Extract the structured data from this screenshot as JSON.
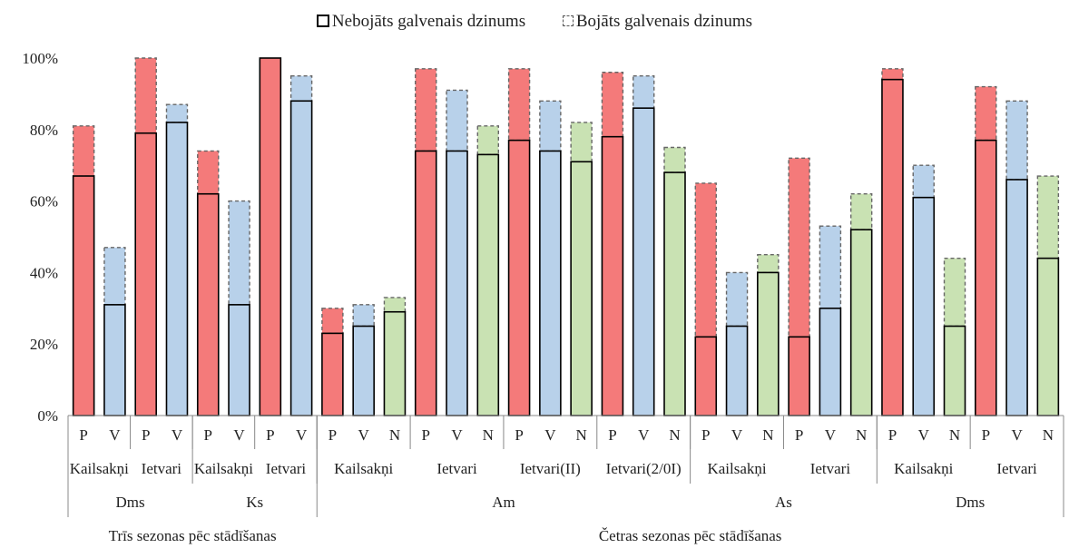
{
  "chart_data": {
    "type": "bar",
    "stacked": true,
    "legend": {
      "position": "top",
      "items": [
        {
          "label": "Nebojāts galvenais dzinums",
          "style": "solid-border"
        },
        {
          "label": "Bojāts galvenais dzinums",
          "style": "dashed-border"
        }
      ]
    },
    "y_axis": {
      "min": 0,
      "max": 100,
      "ticks": [
        "0%",
        "20%",
        "40%",
        "60%",
        "80%",
        "100%"
      ],
      "grid": false
    },
    "colors": {
      "P": "#f47a7a",
      "V": "#b8d1ea",
      "N": "#c9e2b3",
      "axis": "#888888",
      "outline": "#000000",
      "dashed_outline": "#666666"
    },
    "categories_level1": [
      "P",
      "V",
      "P",
      "V",
      "P",
      "V",
      "P",
      "V",
      "P",
      "V",
      "N",
      "P",
      "V",
      "N",
      "P",
      "V",
      "N",
      "P",
      "V",
      "N",
      "P",
      "V",
      "N",
      "P",
      "V",
      "N",
      "P",
      "V",
      "N",
      "P",
      "V",
      "N"
    ],
    "series": [
      {
        "name": "Nebojāts galvenais dzinums",
        "values": [
          67,
          31,
          79,
          82,
          62,
          31,
          100,
          88,
          23,
          25,
          29,
          74,
          74,
          73,
          77,
          74,
          71,
          78,
          86,
          68,
          22,
          25,
          40,
          22,
          30,
          52,
          94,
          61,
          25,
          77,
          66,
          44
        ]
      },
      {
        "name": "Bojāts galvenais dzinums",
        "values": [
          14,
          16,
          21,
          5,
          12,
          29,
          0,
          7,
          7,
          6,
          4,
          23,
          17,
          8,
          20,
          14,
          11,
          18,
          9,
          7,
          43,
          15,
          5,
          50,
          23,
          10,
          3,
          9,
          19,
          15,
          22,
          23
        ]
      }
    ],
    "groups_level2": [
      {
        "label": "Kailsakņi",
        "bars": 2
      },
      {
        "label": "Ietvari",
        "bars": 2
      },
      {
        "label": "Kailsakņi",
        "bars": 2
      },
      {
        "label": "Ietvari",
        "bars": 2
      },
      {
        "label": "Kailsakņi",
        "bars": 3
      },
      {
        "label": "Ietvari",
        "bars": 3
      },
      {
        "label": "Ietvari(II)",
        "bars": 3
      },
      {
        "label": "Ietvari(2/0I)",
        "bars": 3
      },
      {
        "label": "Kailsakņi",
        "bars": 3
      },
      {
        "label": "Ietvari",
        "bars": 3
      },
      {
        "label": "Kailsakņi",
        "bars": 3
      },
      {
        "label": "Ietvari",
        "bars": 3
      }
    ],
    "groups_level3": [
      {
        "label": "Dms",
        "bars": 4
      },
      {
        "label": "Ks",
        "bars": 4
      },
      {
        "label": "Am",
        "bars": 12
      },
      {
        "label": "As",
        "bars": 6
      },
      {
        "label": "Dms",
        "bars": 6
      }
    ],
    "groups_level4": [
      {
        "label": "Trīs sezonas pēc stādīšanas",
        "bars": 8
      },
      {
        "label": "Četras sezonas pēc stādīšanas",
        "bars": 24
      }
    ]
  }
}
